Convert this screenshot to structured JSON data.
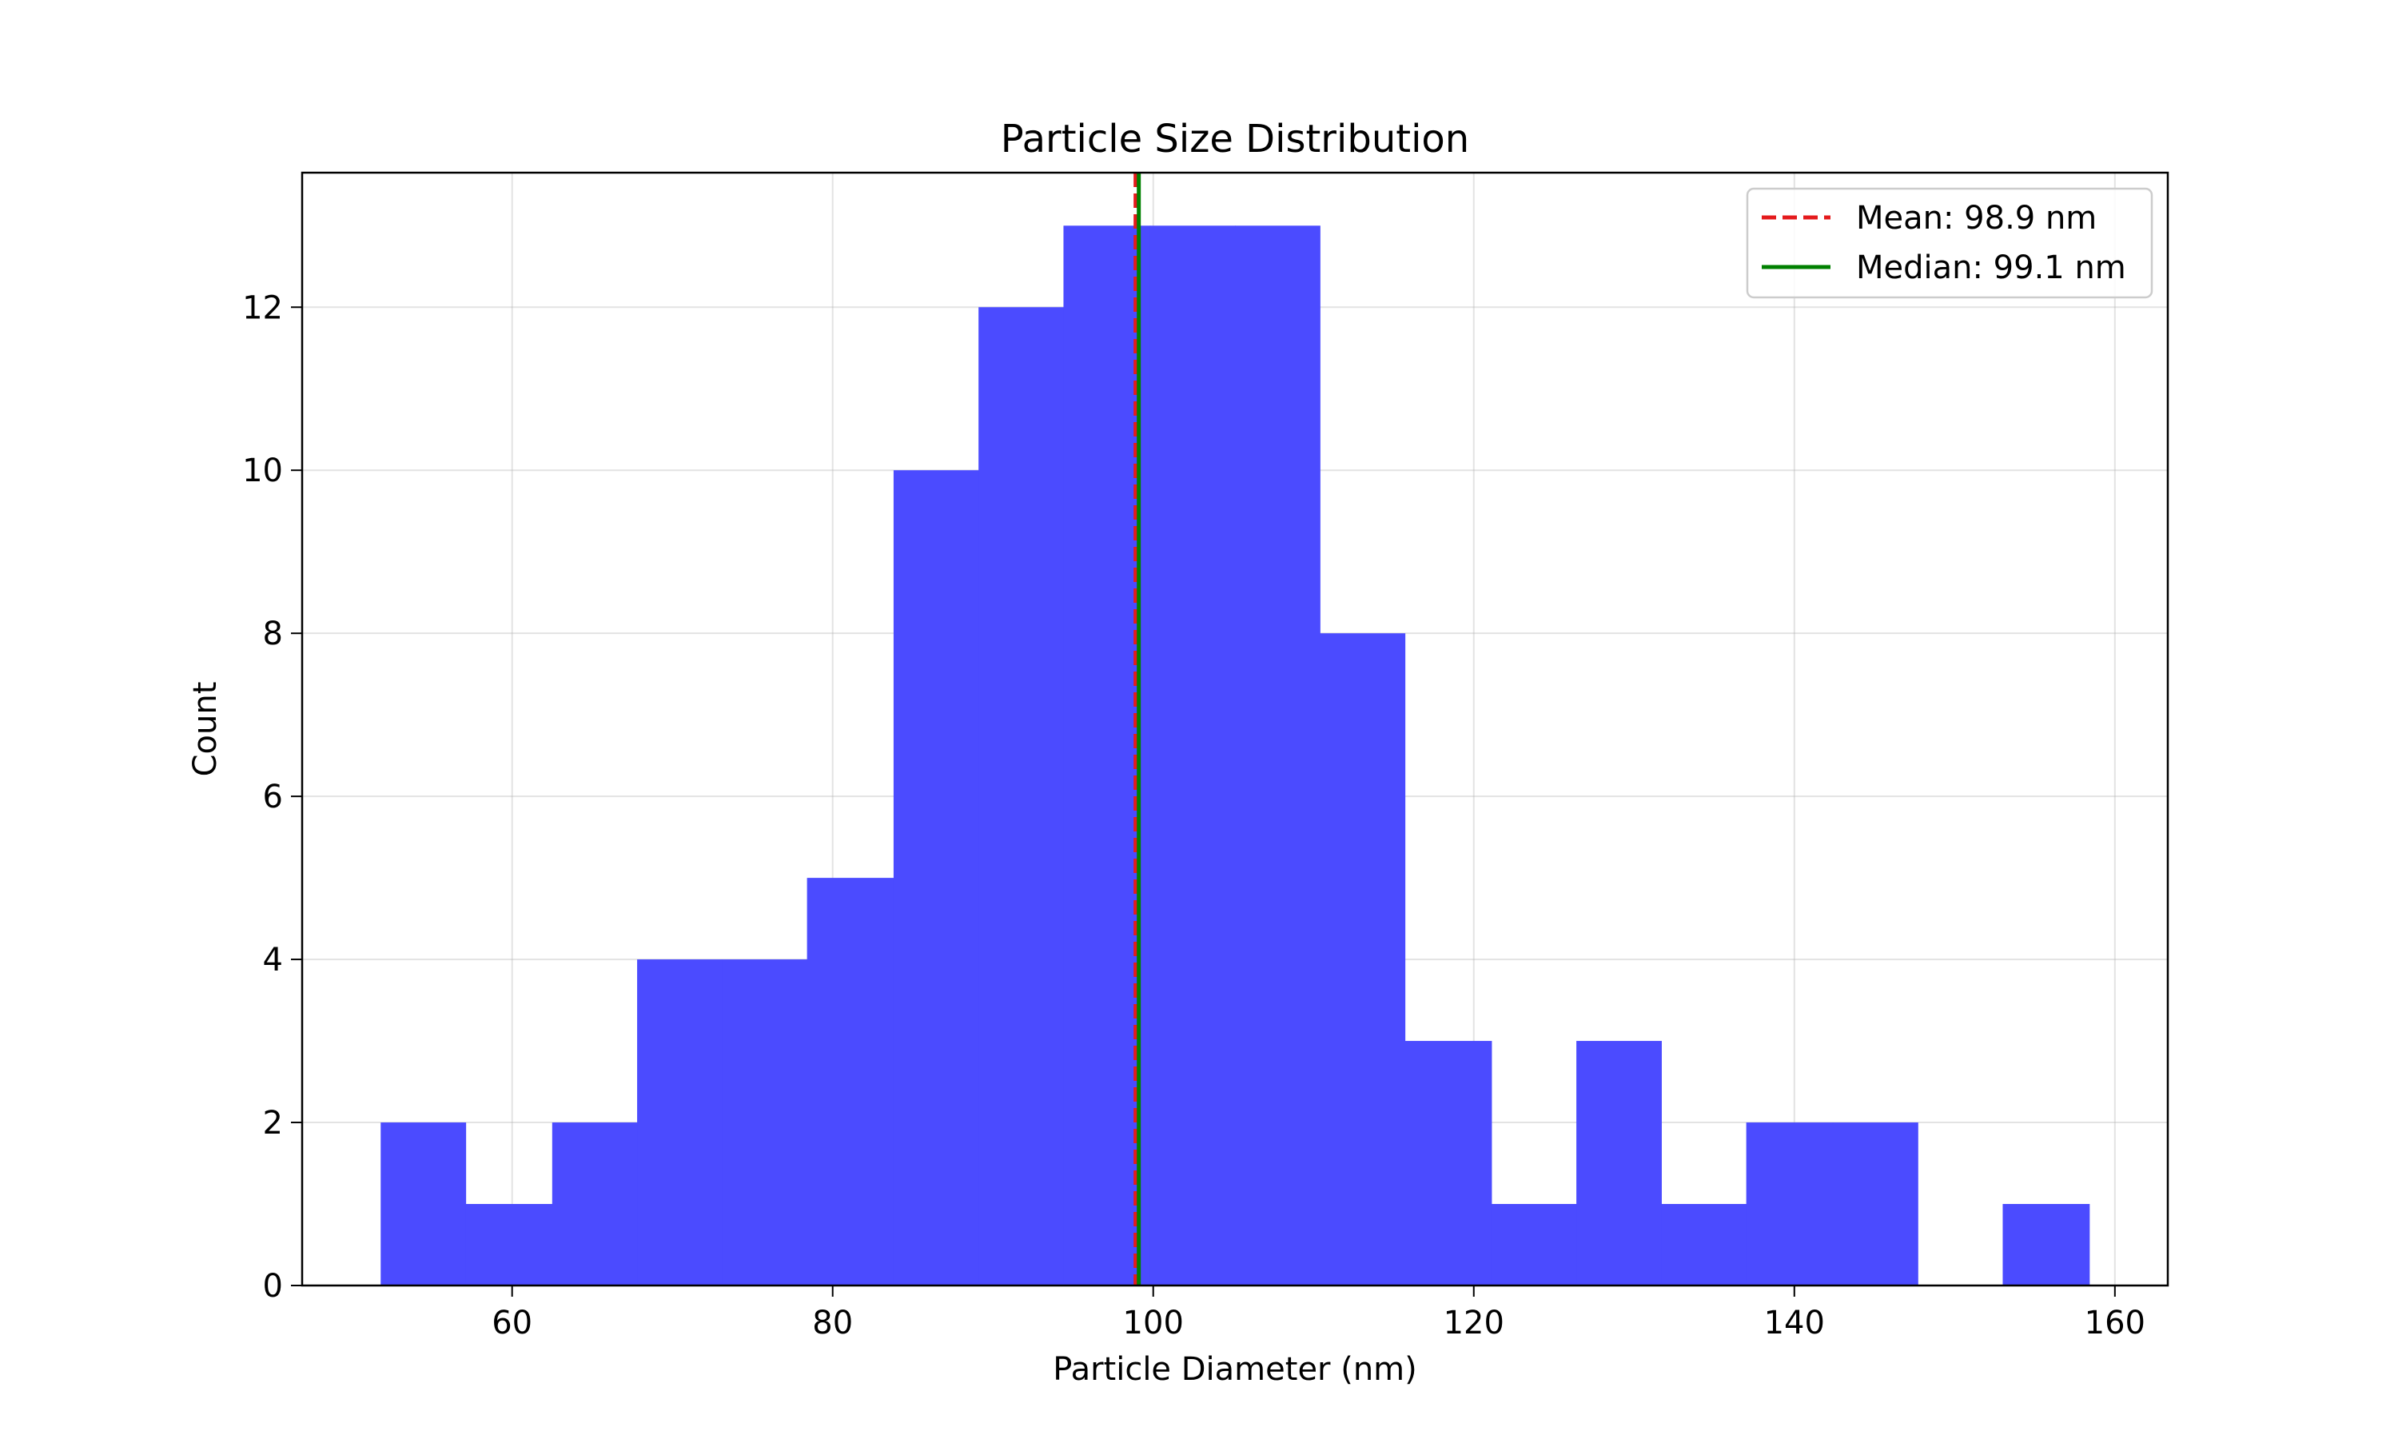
{
  "chart_data": {
    "type": "bar",
    "title": "Particle Size Distribution",
    "xlabel": "Particle Diameter (nm)",
    "ylabel": "Count",
    "xlim": [
      46.9,
      163.3
    ],
    "ylim": [
      0,
      13.65
    ],
    "xticks": [
      60,
      80,
      100,
      120,
      140,
      160
    ],
    "yticks": [
      0,
      2,
      4,
      6,
      8,
      10,
      12
    ],
    "grid": true,
    "bar_color": "#4b4bff",
    "bin_edges": [
      51.8,
      57.1,
      62.5,
      67.8,
      73.1,
      78.4,
      83.8,
      89.1,
      94.4,
      99.8,
      105.1,
      110.4,
      115.7,
      121.1,
      126.4,
      131.7,
      137.0,
      142.4,
      147.7,
      153.0,
      158.4
    ],
    "counts": [
      2,
      1,
      2,
      4,
      4,
      5,
      10,
      12,
      13,
      13,
      13,
      8,
      3,
      1,
      3,
      1,
      2,
      2,
      0,
      1
    ],
    "vlines": [
      {
        "label": "Mean: 98.9 nm",
        "x": 98.9,
        "color": "#e41a1c",
        "style": "dashed"
      },
      {
        "label": "Median: 99.1 nm",
        "x": 99.1,
        "color": "#008000",
        "style": "solid"
      }
    ],
    "legend_position": "top-right"
  }
}
